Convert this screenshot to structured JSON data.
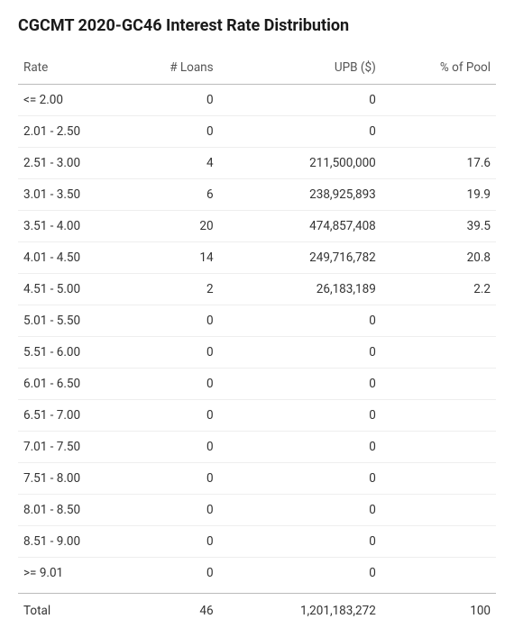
{
  "title": "CGCMT 2020-GC46 Interest Rate Distribution",
  "columns": [
    "Rate",
    "# Loans",
    "UPB ($)",
    "% of Pool"
  ],
  "rows": [
    {
      "rate": "<= 2.00",
      "loans": "0",
      "upb": "0",
      "pct": ""
    },
    {
      "rate": "2.01 - 2.50",
      "loans": "0",
      "upb": "0",
      "pct": ""
    },
    {
      "rate": "2.51 - 3.00",
      "loans": "4",
      "upb": "211,500,000",
      "pct": "17.6"
    },
    {
      "rate": "3.01 - 3.50",
      "loans": "6",
      "upb": "238,925,893",
      "pct": "19.9"
    },
    {
      "rate": "3.51 - 4.00",
      "loans": "20",
      "upb": "474,857,408",
      "pct": "39.5"
    },
    {
      "rate": "4.01 - 4.50",
      "loans": "14",
      "upb": "249,716,782",
      "pct": "20.8"
    },
    {
      "rate": "4.51 - 5.00",
      "loans": "2",
      "upb": "26,183,189",
      "pct": "2.2"
    },
    {
      "rate": "5.01 - 5.50",
      "loans": "0",
      "upb": "0",
      "pct": ""
    },
    {
      "rate": "5.51 - 6.00",
      "loans": "0",
      "upb": "0",
      "pct": ""
    },
    {
      "rate": "6.01 - 6.50",
      "loans": "0",
      "upb": "0",
      "pct": ""
    },
    {
      "rate": "6.51 - 7.00",
      "loans": "0",
      "upb": "0",
      "pct": ""
    },
    {
      "rate": "7.01 - 7.50",
      "loans": "0",
      "upb": "0",
      "pct": ""
    },
    {
      "rate": "7.51 - 8.00",
      "loans": "0",
      "upb": "0",
      "pct": ""
    },
    {
      "rate": "8.01 - 8.50",
      "loans": "0",
      "upb": "0",
      "pct": ""
    },
    {
      "rate": "8.51 - 9.00",
      "loans": "0",
      "upb": "0",
      "pct": ""
    },
    {
      "rate": ">= 9.01",
      "loans": "0",
      "upb": "0",
      "pct": ""
    }
  ],
  "total": {
    "label": "Total",
    "loans": "46",
    "upb": "1,201,183,272",
    "pct": "100"
  }
}
